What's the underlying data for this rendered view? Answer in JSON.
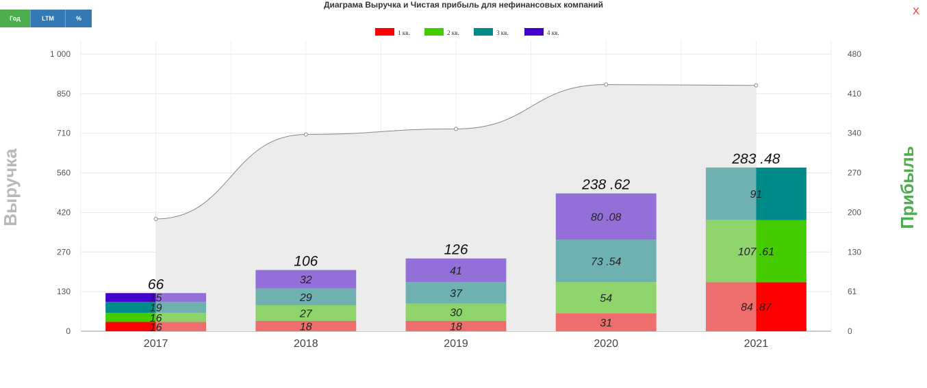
{
  "title": "Диаграма Выручка и Чистая прибыль для нефинансовых компаний",
  "buttons": {
    "year": "Год",
    "ltm": "LTM",
    "percent": "%"
  },
  "close_label": "X",
  "colors": {
    "q1_legend": "#ff0000",
    "q2_legend": "#44cc00",
    "q3_legend": "#008b8b",
    "q4_legend": "#4400cc",
    "q1_faded": "#ee6e6e",
    "q2_faded": "#8fd46a",
    "q3_faded": "#6fb0b0",
    "q4_faded": "#9370d8",
    "left_axis_title": "#b8b8b8",
    "right_axis_title": "#4cae4c"
  },
  "chart_data": {
    "type": "bar",
    "stacked": true,
    "categories": [
      "2017",
      "2018",
      "2019",
      "2020",
      "2021"
    ],
    "left_axis": {
      "title": "Выручка",
      "ticks": [
        "0",
        "130",
        "270",
        "420",
        "560",
        "710",
        "850",
        "1 000"
      ],
      "ylim": [
        0,
        1000
      ]
    },
    "right_axis": {
      "title": "Прибыль",
      "ticks": [
        "0",
        "61",
        "130",
        "200",
        "270",
        "340",
        "410",
        "480"
      ],
      "ylim": [
        0,
        480
      ]
    },
    "legend": {
      "position": "top-center",
      "items": [
        "1 кв.",
        "2 кв.",
        "3 кв.",
        "4 кв."
      ]
    },
    "series": [
      {
        "name": "1 кв.",
        "values": [
          16,
          18,
          18,
          31,
          84.87
        ],
        "labels": [
          "16",
          "18",
          "18",
          "31",
          "84 .87"
        ]
      },
      {
        "name": "2 кв.",
        "values": [
          16,
          27,
          30,
          54,
          107.61
        ],
        "labels": [
          "16",
          "27",
          "30",
          "54",
          "107 .61"
        ]
      },
      {
        "name": "3 кв.",
        "values": [
          19,
          29,
          37,
          73.54,
          91
        ],
        "labels": [
          "19",
          "29",
          "37",
          "73 .54",
          "91"
        ]
      },
      {
        "name": "4 кв.",
        "values": [
          15,
          32,
          41,
          80.08,
          null
        ],
        "labels": [
          "15",
          "32",
          "41",
          "80 .08",
          ""
        ]
      }
    ],
    "totals": {
      "values": [
        66,
        106,
        126,
        238.62,
        283.48
      ],
      "labels": [
        "66",
        "106",
        "126",
        "238 .62",
        "283 .48"
      ]
    },
    "revenue_line": {
      "axis": "left",
      "values": [
        405,
        710,
        730,
        890,
        887
      ]
    },
    "grid": true
  }
}
